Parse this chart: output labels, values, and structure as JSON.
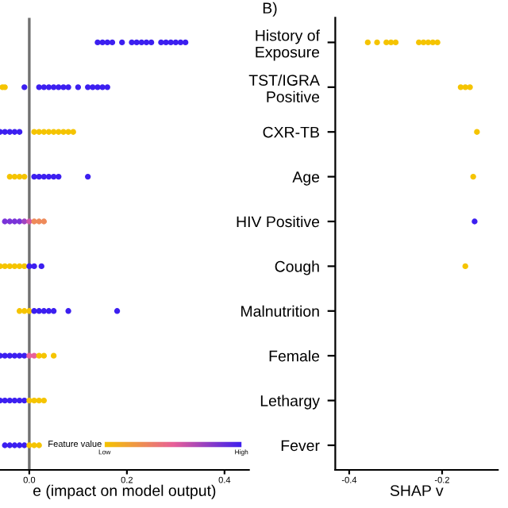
{
  "chart_data": [
    {
      "type": "scatter",
      "orientation": "horizontal",
      "xlabel": "e (impact on model output)",
      "annotations": [
        "Feature value",
        "Low",
        "High"
      ],
      "categories": [
        null,
        null,
        null,
        null,
        null,
        null,
        null,
        null,
        null,
        null
      ],
      "xlim": [
        -0.06,
        0.45
      ],
      "xticks": [
        {
          "value": 0,
          "label": "0.0"
        },
        {
          "value": 0.2,
          "label": "0.2"
        },
        {
          "value": 0.4,
          "label": "0.4"
        }
      ],
      "tick_labels": "x",
      "ref_lines": [
        {
          "axis": "x",
          "value": 0,
          "color": "#707070"
        }
      ],
      "series": [
        {
          "values": [
            0.14,
            -0.055,
            -0.06,
            -0.04,
            -0.05,
            -0.06,
            -0.02,
            -0.06,
            -0.06,
            -0.05
          ],
          "colors": [
            "#3c1ff0",
            "#f5c400",
            "#3c1ff0",
            "#f5c400",
            "#7a33d8",
            "#f5c400",
            "#f5c400",
            "#3c1ff0",
            "#3c1ff0",
            "#3c1ff0"
          ]
        },
        {
          "values": [
            0.15,
            -0.05,
            -0.05,
            -0.03,
            -0.04,
            -0.05,
            -0.01,
            -0.05,
            -0.05,
            -0.04
          ],
          "colors": [
            "#3c1ff0",
            "#f5c400",
            "#3c1ff0",
            "#f5c400",
            "#7a33d8",
            "#f5c400",
            "#f5c400",
            "#3c1ff0",
            "#3c1ff0",
            "#3c1ff0"
          ]
        },
        {
          "values": [
            0.16,
            -0.01,
            -0.04,
            -0.02,
            -0.03,
            -0.04,
            0.0,
            -0.04,
            -0.04,
            -0.03
          ],
          "colors": [
            "#3c1ff0",
            "#3c1ff0",
            "#3c1ff0",
            "#f5c400",
            "#7a33d8",
            "#f5c400",
            "#f5c400",
            "#3c1ff0",
            "#3c1ff0",
            "#3c1ff0"
          ]
        },
        {
          "values": [
            0.17,
            0.02,
            -0.03,
            -0.01,
            -0.02,
            -0.03,
            0.01,
            -0.03,
            -0.03,
            -0.02
          ],
          "colors": [
            "#3c1ff0",
            "#3c1ff0",
            "#3c1ff0",
            "#f5c400",
            "#7a33d8",
            "#f5c400",
            "#3c1ff0",
            "#3c1ff0",
            "#3c1ff0",
            "#3c1ff0"
          ]
        },
        {
          "values": [
            0.19,
            0.03,
            -0.02,
            0.01,
            -0.01,
            -0.02,
            0.02,
            -0.02,
            -0.02,
            -0.01
          ],
          "colors": [
            "#3c1ff0",
            "#3c1ff0",
            "#3c1ff0",
            "#3c1ff0",
            "#a044c0",
            "#f5c400",
            "#3c1ff0",
            "#3c1ff0",
            "#3c1ff0",
            "#3c1ff0"
          ]
        },
        {
          "values": [
            0.21,
            0.04,
            0.01,
            0.02,
            0.0,
            -0.01,
            0.03,
            -0.01,
            -0.01,
            0.0
          ],
          "colors": [
            "#3c1ff0",
            "#3c1ff0",
            "#f5c400",
            "#3c1ff0",
            "#d058a8",
            "#f5c400",
            "#3c1ff0",
            "#3c1ff0",
            "#3c1ff0",
            "#f5c400"
          ]
        },
        {
          "values": [
            0.22,
            0.05,
            0.02,
            0.03,
            0.01,
            0.0,
            0.04,
            0.0,
            0.0,
            0.01
          ],
          "colors": [
            "#3c1ff0",
            "#3c1ff0",
            "#f5c400",
            "#3c1ff0",
            "#ee8a5a",
            "#3c1ff0",
            "#3c1ff0",
            "#e8609a",
            "#f5c400",
            "#f5c400"
          ]
        },
        {
          "values": [
            0.23,
            0.06,
            0.03,
            0.04,
            0.02,
            0.01,
            0.05,
            0.01,
            0.01,
            0.02
          ],
          "colors": [
            "#3c1ff0",
            "#3c1ff0",
            "#f5c400",
            "#3c1ff0",
            "#ee8a5a",
            "#3c1ff0",
            "#3c1ff0",
            "#e8609a",
            "#f5c400",
            "#f5c400"
          ]
        },
        {
          "values": [
            0.24,
            0.07,
            0.04,
            0.05,
            0.03,
            0.025,
            0.08,
            0.02,
            0.02,
            null
          ],
          "colors": [
            "#3c1ff0",
            "#3c1ff0",
            "#f5c400",
            "#3c1ff0",
            "#ee8a5a",
            "#3c1ff0",
            "#3c1ff0",
            "#f5c400",
            "#f5c400",
            null
          ]
        },
        {
          "values": [
            0.25,
            0.08,
            0.05,
            0.06,
            null,
            null,
            0.18,
            0.03,
            0.03,
            null
          ],
          "colors": [
            "#3c1ff0",
            "#3c1ff0",
            "#f5c400",
            "#3c1ff0",
            null,
            null,
            "#3c1ff0",
            "#f5c400",
            "#f5c400",
            null
          ]
        },
        {
          "values": [
            0.27,
            0.1,
            0.06,
            0.12,
            null,
            null,
            null,
            0.05,
            null,
            null
          ],
          "colors": [
            "#3c1ff0",
            "#3c1ff0",
            "#f5c400",
            "#3c1ff0",
            null,
            null,
            null,
            "#f5c400",
            null,
            null
          ]
        },
        {
          "values": [
            0.28,
            0.12,
            0.07,
            null,
            null,
            null,
            null,
            null,
            null,
            null
          ],
          "colors": [
            "#3c1ff0",
            "#3c1ff0",
            "#f5c400",
            null,
            null,
            null,
            null,
            null,
            null,
            null
          ]
        },
        {
          "values": [
            0.29,
            0.13,
            0.08,
            null,
            null,
            null,
            null,
            null,
            null,
            null
          ],
          "colors": [
            "#3c1ff0",
            "#3c1ff0",
            "#f5c400",
            null,
            null,
            null,
            null,
            null,
            null,
            null
          ]
        },
        {
          "values": [
            0.3,
            0.14,
            0.09,
            null,
            null,
            null,
            null,
            null,
            null,
            null
          ],
          "colors": [
            "#3c1ff0",
            "#3c1ff0",
            "#f5c400",
            null,
            null,
            null,
            null,
            null,
            null,
            null
          ]
        },
        {
          "values": [
            0.31,
            0.15,
            null,
            null,
            null,
            null,
            null,
            null,
            null,
            null
          ],
          "color": "#3c1ff0"
        },
        {
          "values": [
            0.32,
            0.16,
            null,
            null,
            null,
            null,
            null,
            null,
            null,
            null
          ],
          "color": "#3c1ff0"
        }
      ]
    },
    {
      "type": "scatter",
      "orientation": "horizontal",
      "title": "B)",
      "xlabel": "SHAP v",
      "categories": [
        "History of\nExposure",
        "TST/IGRA\nPositive",
        "CXR-TB",
        "Age",
        "HIV Positive",
        "Cough",
        "Malnutrition",
        "Female",
        "Lethargy",
        "Fever"
      ],
      "xlim": [
        -0.43,
        -0.08
      ],
      "xticks": [
        -0.4,
        -0.2
      ],
      "series": [
        {
          "values": [
            -0.36,
            -0.16,
            -0.125,
            -0.133,
            -0.13,
            -0.15,
            null,
            null,
            null,
            null
          ],
          "colors": [
            "#f5c400",
            "#f5c400",
            "#f5c400",
            "#f5c400",
            "#3c1ff0",
            "#f5c400",
            null,
            null,
            null,
            null
          ]
        },
        {
          "values": [
            -0.34,
            -0.15,
            null,
            null,
            null,
            null,
            null,
            null,
            null,
            null
          ],
          "color": "#f5c400"
        },
        {
          "values": [
            -0.32,
            -0.14,
            null,
            null,
            null,
            null,
            null,
            null,
            null,
            null
          ],
          "color": "#f5c400"
        },
        {
          "values": [
            -0.31,
            null,
            null,
            null,
            null,
            null,
            null,
            null,
            null,
            null
          ],
          "color": "#f5c400"
        },
        {
          "values": [
            -0.3,
            null,
            null,
            null,
            null,
            null,
            null,
            null,
            null,
            null
          ],
          "color": "#f5c400"
        },
        {
          "values": [
            -0.25,
            null,
            null,
            null,
            null,
            null,
            null,
            null,
            null,
            null
          ],
          "color": "#f5c400"
        },
        {
          "values": [
            -0.24,
            null,
            null,
            null,
            null,
            null,
            null,
            null,
            null,
            null
          ],
          "color": "#f5c400"
        },
        {
          "values": [
            -0.23,
            null,
            null,
            null,
            null,
            null,
            null,
            null,
            null,
            null
          ],
          "color": "#f5c400"
        },
        {
          "values": [
            -0.22,
            null,
            null,
            null,
            null,
            null,
            null,
            null,
            null,
            null
          ],
          "color": "#f5c400"
        },
        {
          "values": [
            -0.21,
            null,
            null,
            null,
            null,
            null,
            null,
            null,
            null,
            null
          ],
          "color": "#f5c400"
        }
      ]
    }
  ]
}
